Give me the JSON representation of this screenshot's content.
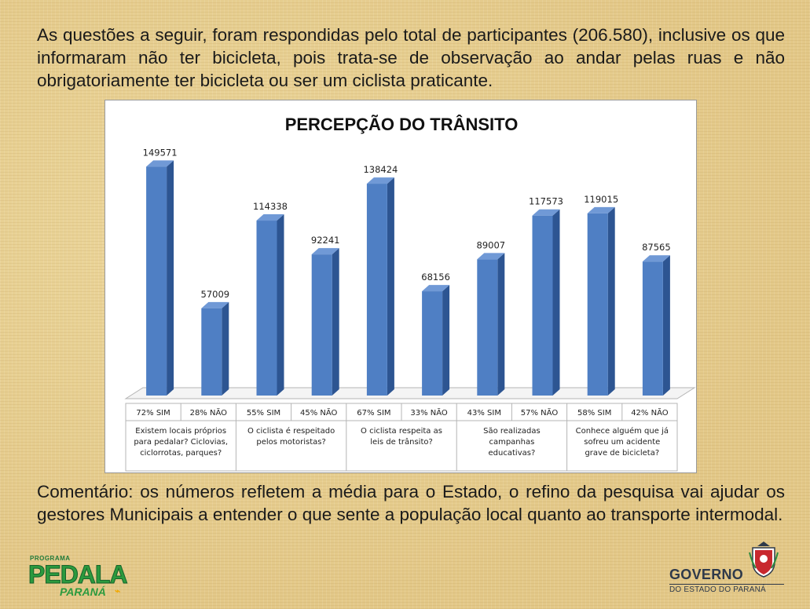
{
  "intro_text": "As questões a seguir, foram respondidas pelo total de participantes (206.580), inclusive os que informaram não ter bicicleta, pois trata-se de observação ao andar pelas ruas e não obrigatoriamente ter bicicleta ou ser um ciclista praticante.",
  "comment_text": "Comentário: os números refletem a média para o Estado, o refino da pesquisa vai ajudar os gestores Municipais a entender o que sente a população local quanto ao transporte intermodal.",
  "colors": {
    "bar_front": "#4f7fc4",
    "bar_side": "#2d5592",
    "bar_top": "#7099d6"
  },
  "chart_data": {
    "type": "bar",
    "title": "PERCEPÇÃO DO TRÂNSITO",
    "categories": [
      "72% SIM",
      "28% NÃO",
      "55% SIM",
      "45% NÃO",
      "67% SIM",
      "33% NÃO",
      "43% SIM",
      "57% NÃO",
      "58% SIM",
      "42% NÃO"
    ],
    "values": [
      149571,
      57009,
      114338,
      92241,
      138424,
      68156,
      89007,
      117573,
      119015,
      87565
    ],
    "groups": [
      [
        "Existem locais próprios",
        "para pedalar? Ciclovias,",
        "ciclorrotas, parques?"
      ],
      [
        "O ciclista é respeitado",
        "pelos motoristas?"
      ],
      [
        "O ciclista respeita as",
        "leis de trânsito?"
      ],
      [
        "São realizadas",
        "campanhas",
        "educativas?"
      ],
      [
        "Conhece alguém que já",
        "sofreu um acidente",
        "grave de bicicleta?"
      ]
    ],
    "ylim": [
      0,
      160000
    ],
    "grid": false,
    "legend": "none"
  },
  "logos": {
    "left_pre": "PROGRAMA",
    "left_main": "PEDALA",
    "left_sub": "PARANÁ",
    "right_main": "GOVERNO",
    "right_sub": "DO ESTADO DO PARANÁ"
  }
}
